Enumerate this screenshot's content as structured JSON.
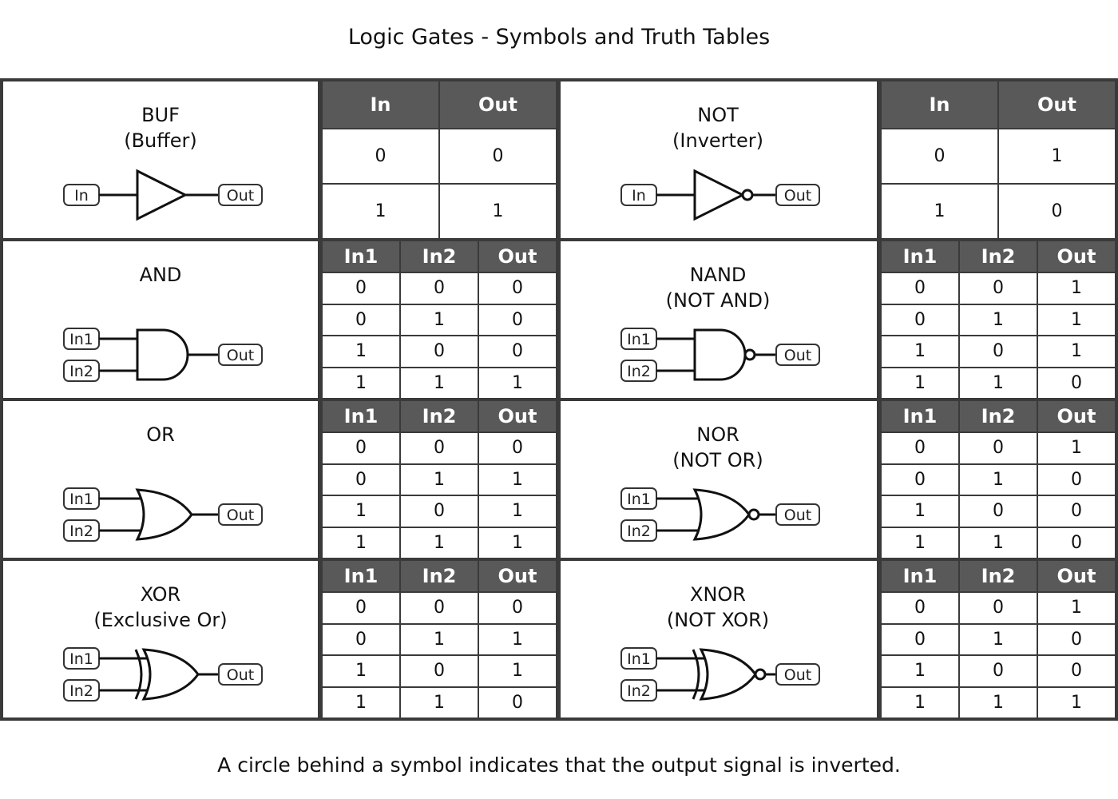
{
  "title": "Logic Gates - Symbols and Truth Tables",
  "footnote": "A circle behind a symbol indicates that the output signal is inverted.",
  "gates": [
    {
      "id": "buf",
      "name": "BUF\n(Buffer)",
      "shape": "buffer",
      "inverted": false,
      "inputs": [
        "In"
      ],
      "output": "Out",
      "headers": [
        "In",
        "Out"
      ],
      "rows": [
        [
          "0",
          "0"
        ],
        [
          "1",
          "1"
        ]
      ]
    },
    {
      "id": "not",
      "name": "NOT\n(Inverter)",
      "shape": "buffer",
      "inverted": true,
      "inputs": [
        "In"
      ],
      "output": "Out",
      "headers": [
        "In",
        "Out"
      ],
      "rows": [
        [
          "0",
          "1"
        ],
        [
          "1",
          "0"
        ]
      ]
    },
    {
      "id": "and",
      "name": "AND",
      "shape": "and",
      "inverted": false,
      "inputs": [
        "In1",
        "In2"
      ],
      "output": "Out",
      "headers": [
        "In1",
        "In2",
        "Out"
      ],
      "rows": [
        [
          "0",
          "0",
          "0"
        ],
        [
          "0",
          "1",
          "0"
        ],
        [
          "1",
          "0",
          "0"
        ],
        [
          "1",
          "1",
          "1"
        ]
      ]
    },
    {
      "id": "nand",
      "name": "NAND\n(NOT AND)",
      "shape": "and",
      "inverted": true,
      "inputs": [
        "In1",
        "In2"
      ],
      "output": "Out",
      "headers": [
        "In1",
        "In2",
        "Out"
      ],
      "rows": [
        [
          "0",
          "0",
          "1"
        ],
        [
          "0",
          "1",
          "1"
        ],
        [
          "1",
          "0",
          "1"
        ],
        [
          "1",
          "1",
          "0"
        ]
      ]
    },
    {
      "id": "or",
      "name": "OR",
      "shape": "or",
      "inverted": false,
      "inputs": [
        "In1",
        "In2"
      ],
      "output": "Out",
      "headers": [
        "In1",
        "In2",
        "Out"
      ],
      "rows": [
        [
          "0",
          "0",
          "0"
        ],
        [
          "0",
          "1",
          "1"
        ],
        [
          "1",
          "0",
          "1"
        ],
        [
          "1",
          "1",
          "1"
        ]
      ]
    },
    {
      "id": "nor",
      "name": "NOR\n(NOT OR)",
      "shape": "or",
      "inverted": true,
      "inputs": [
        "In1",
        "In2"
      ],
      "output": "Out",
      "headers": [
        "In1",
        "In2",
        "Out"
      ],
      "rows": [
        [
          "0",
          "0",
          "1"
        ],
        [
          "0",
          "1",
          "0"
        ],
        [
          "1",
          "0",
          "0"
        ],
        [
          "1",
          "1",
          "0"
        ]
      ]
    },
    {
      "id": "xor",
      "name": "XOR\n(Exclusive Or)",
      "shape": "xor",
      "inverted": false,
      "inputs": [
        "In1",
        "In2"
      ],
      "output": "Out",
      "headers": [
        "In1",
        "In2",
        "Out"
      ],
      "rows": [
        [
          "0",
          "0",
          "0"
        ],
        [
          "0",
          "1",
          "1"
        ],
        [
          "1",
          "0",
          "1"
        ],
        [
          "1",
          "1",
          "0"
        ]
      ]
    },
    {
      "id": "xnor",
      "name": "XNOR\n(NOT XOR)",
      "shape": "xor",
      "inverted": true,
      "inputs": [
        "In1",
        "In2"
      ],
      "output": "Out",
      "headers": [
        "In1",
        "In2",
        "Out"
      ],
      "rows": [
        [
          "0",
          "0",
          "1"
        ],
        [
          "0",
          "1",
          "0"
        ],
        [
          "1",
          "0",
          "0"
        ],
        [
          "1",
          "1",
          "1"
        ]
      ]
    }
  ],
  "colors": {
    "header_bg": "#595959",
    "border": "#3a3a3a",
    "header_text": "#ffffff"
  }
}
